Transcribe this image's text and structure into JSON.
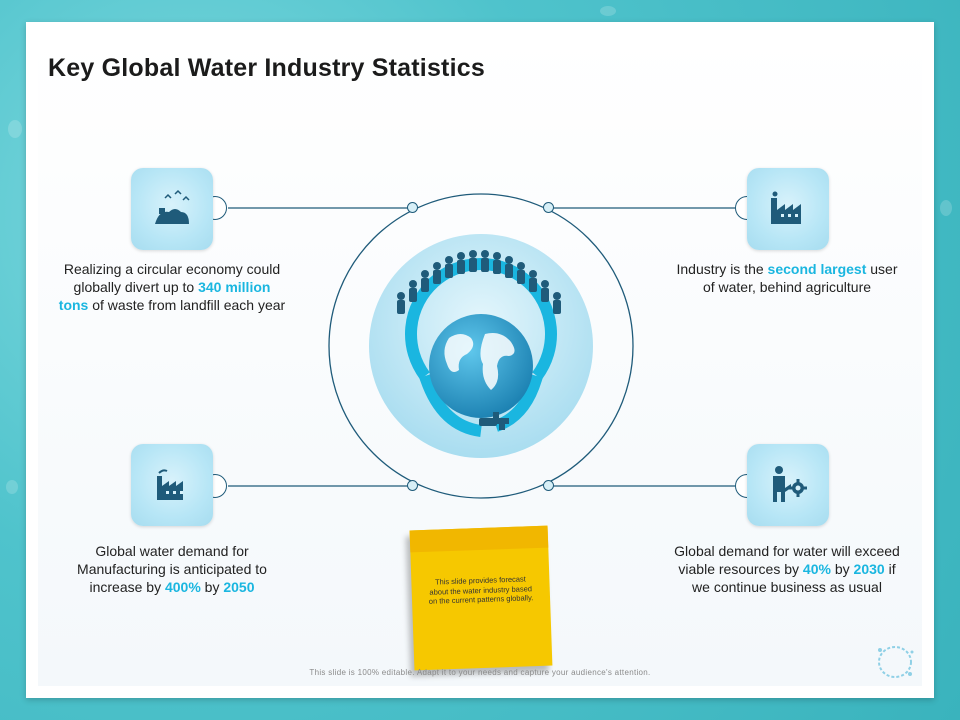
{
  "title": "Key Global Water Industry Statistics",
  "stats": {
    "top_left": {
      "icon": "recycle-landfill-icon",
      "pre": "Realizing a circular economy could globally divert up to ",
      "highlight": "340 million tons",
      "post": " of waste from landfill each year"
    },
    "top_right": {
      "icon": "factory-icon",
      "pre": "Industry is the ",
      "highlight": "second largest",
      "post": " user of water, behind agriculture"
    },
    "bottom_left": {
      "icon": "manufacturing-icon",
      "pre": "Global water demand for Manufacturing is anticipated to increase by ",
      "hl1": "400%",
      "mid": " by ",
      "hl2": "2050"
    },
    "bottom_right": {
      "icon": "businessman-gear-icon",
      "pre": "Global demand for water will exceed viable resources by ",
      "hl1": "40%",
      "mid": " by ",
      "hl2": "2030",
      "post": " if we continue business as usual"
    }
  },
  "sticky_note": "This slide provides forecast about the water industry based on the current patterns globally.",
  "footer": "This slide is 100% editable. Adapt it to your needs and capture your audience's attention.",
  "center_graphic": "people-globe-tap-icon",
  "colors": {
    "accent": "#1ab6e0",
    "icon_dark": "#1f5b7a",
    "sticky": "#f6c800"
  }
}
